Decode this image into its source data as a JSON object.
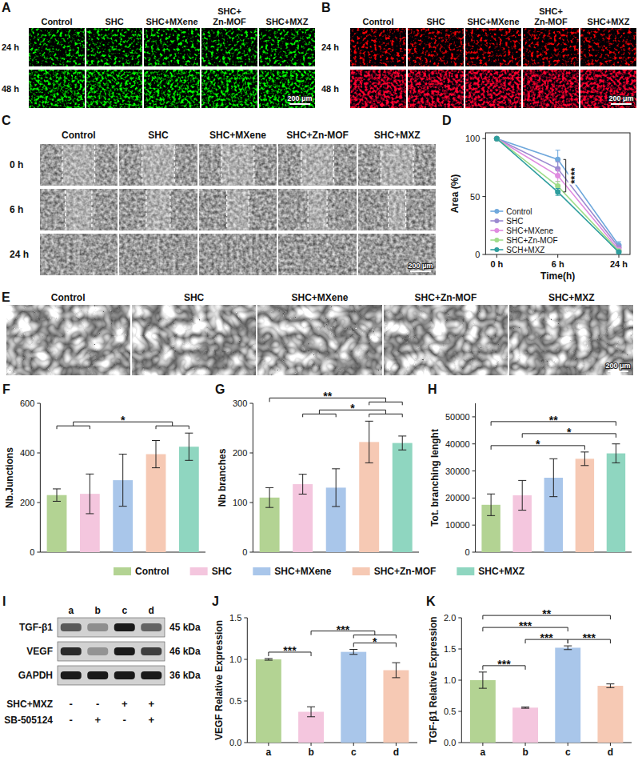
{
  "image_panels": {
    "A": {
      "panel": "A",
      "columns": [
        "Control",
        "SHC",
        "SHC+MXene",
        "SHC+Zn-MOF",
        "SHC+MXZ"
      ],
      "rows": [
        "24 h",
        "48 h"
      ],
      "scale_bar": "200 μm"
    },
    "B": {
      "panel": "B",
      "columns": [
        "Control",
        "SHC",
        "SHC+MXene",
        "SHC+Zn-MOF",
        "SHC+MXZ"
      ],
      "rows": [
        "24 h",
        "48 h"
      ],
      "scale_bar": "200 μm"
    },
    "C": {
      "panel": "C",
      "columns": [
        "Control",
        "SHC",
        "SHC+MXene",
        "SHC+Zn-MOF",
        "SHC+MXZ"
      ],
      "rows": [
        "0 h",
        "6 h",
        "24 h"
      ],
      "scale_bar": "200 μm"
    },
    "E": {
      "panel": "E",
      "columns": [
        "Control",
        "SHC",
        "SHC+MXene",
        "SHC+Zn-MOF",
        "SHC+MXZ"
      ],
      "scale_bar": "200 μm"
    },
    "I": {
      "panel": "I",
      "proteins": [
        "TGF-β1",
        "VEGF",
        "GAPDH"
      ],
      "sizes": [
        "45 kDa",
        "46 kDa",
        "36 kDa"
      ],
      "lanes": [
        "a",
        "b",
        "c",
        "d"
      ],
      "treatments": [
        {
          "name": "SHC+MXZ",
          "signs": [
            "-",
            "-",
            "+",
            "+"
          ]
        },
        {
          "name": "SB-505124",
          "signs": [
            "-",
            "+",
            "-",
            "+"
          ]
        }
      ]
    }
  },
  "chart_data": [
    {
      "panel": "D",
      "type": "line",
      "categories": [
        "0 h",
        "6 h",
        "24 h"
      ],
      "x_label": "Time(h)",
      "y_label": "Area (%)",
      "ylim": [
        0,
        105
      ],
      "yticks": [
        0,
        50,
        100
      ],
      "marker": "circle",
      "legend": "lower left",
      "series": [
        {
          "name": "Control",
          "color": "#6fa8dc",
          "values": [
            100,
            82,
            8
          ],
          "errors": [
            0,
            8,
            3
          ]
        },
        {
          "name": "SHC",
          "color": "#9b8ad0",
          "values": [
            100,
            74,
            6
          ],
          "errors": [
            0,
            6,
            2
          ]
        },
        {
          "name": "SHC+MXene",
          "color": "#e08be0",
          "values": [
            100,
            68,
            4
          ],
          "errors": [
            0,
            5,
            2
          ]
        },
        {
          "name": "SHC+Zn-MOF",
          "color": "#9fdc8a",
          "values": [
            100,
            59,
            3
          ],
          "errors": [
            0,
            4,
            1
          ]
        },
        {
          "name": "SCH+MXZ",
          "color": "#2e9e9e",
          "values": [
            100,
            54,
            2
          ],
          "errors": [
            0,
            3,
            1
          ]
        }
      ],
      "annotations": [
        {
          "text": "****",
          "from": [
            "Control"
          ],
          "to": [
            "SCH+MXZ"
          ],
          "category": "6 h"
        }
      ]
    },
    {
      "panel": "F",
      "type": "bar",
      "categories": [
        "Control",
        "SHC",
        "SHC+MXene",
        "SHC+Zn-MOF",
        "SHC+MXZ"
      ],
      "colors": [
        "#b3d393",
        "#f4c6de",
        "#a9c6ea",
        "#f6c9b4",
        "#8fd6c0"
      ],
      "values": [
        230,
        235,
        290,
        395,
        425
      ],
      "errors": [
        25,
        80,
        105,
        55,
        55
      ],
      "y_label": "Nb.Junctions",
      "ylim": [
        0,
        600
      ],
      "yticks": [
        0,
        200,
        400,
        600
      ],
      "tick_labels": "y",
      "legend": "bottom",
      "annotations": [
        {
          "text": "*",
          "from": [
            "Control",
            "SHC"
          ],
          "to": [
            "SHC+Zn-MOF",
            "SHC+MXZ"
          ]
        }
      ]
    },
    {
      "panel": "G",
      "type": "bar",
      "categories": [
        "Control",
        "SHC",
        "SHC+MXene",
        "SHC+Zn-MOF",
        "SHC+MXZ"
      ],
      "colors": [
        "#b3d393",
        "#f4c6de",
        "#a9c6ea",
        "#f6c9b4",
        "#8fd6c0"
      ],
      "values": [
        110,
        137,
        130,
        222,
        220
      ],
      "errors": [
        20,
        20,
        38,
        42,
        14
      ],
      "y_label": "Nb branches",
      "ylim": [
        0,
        300
      ],
      "yticks": [
        0,
        100,
        200,
        300
      ],
      "tick_labels": "y",
      "annotations": [
        {
          "text": "*",
          "from": [
            "SHC",
            "SHC+MXene"
          ],
          "to": [
            "SHC+Zn-MOF",
            "SHC+MXZ"
          ]
        },
        {
          "text": "**",
          "from": [
            "Control"
          ],
          "to": [
            "SHC+Zn-MOF",
            "SHC+MXZ"
          ]
        }
      ]
    },
    {
      "panel": "H",
      "type": "bar",
      "categories": [
        "Control",
        "SHC",
        "SHC+MXene",
        "SHC+Zn-MOF",
        "SHC+MXZ"
      ],
      "colors": [
        "#b3d393",
        "#f4c6de",
        "#a9c6ea",
        "#f6c9b4",
        "#8fd6c0"
      ],
      "values": [
        17500,
        21000,
        27500,
        34500,
        36500
      ],
      "errors": [
        4000,
        5500,
        7000,
        2500,
        3500
      ],
      "y_label": "Tot. branching lenght",
      "ylim": [
        0,
        55000
      ],
      "yticks": [
        0,
        10000,
        20000,
        30000,
        40000,
        50000
      ],
      "tick_labels": "y",
      "annotations": [
        {
          "text": "*",
          "from": [
            "Control"
          ],
          "to": [
            "SHC+Zn-MOF"
          ]
        },
        {
          "text": "*",
          "from": [
            "SHC"
          ],
          "to": [
            "SHC+MXZ"
          ]
        },
        {
          "text": "**",
          "from": [
            "Control"
          ],
          "to": [
            "SHC+MXZ"
          ]
        }
      ]
    },
    {
      "panel": "J",
      "type": "bar",
      "categories": [
        "a",
        "b",
        "c",
        "d"
      ],
      "colors": [
        "#b3d393",
        "#f4c6de",
        "#a9c6ea",
        "#f6c9b4"
      ],
      "values": [
        1.0,
        0.37,
        1.09,
        0.87
      ],
      "errors": [
        0.01,
        0.06,
        0.03,
        0.09
      ],
      "y_label": "VEGF Relative Expression",
      "ylim": [
        0,
        1.5
      ],
      "yticks": [
        {
          "value": 0,
          "label": "0.0"
        },
        0.5,
        {
          "value": 1,
          "label": "1.0"
        },
        1.5
      ],
      "annotations": [
        {
          "text": "*",
          "from": [
            "c"
          ],
          "to": [
            "d"
          ]
        },
        {
          "text": "***",
          "from": [
            "b"
          ],
          "to": [
            "c",
            "d"
          ]
        },
        {
          "text": "***",
          "from": [
            "a"
          ],
          "to": [
            "b"
          ]
        }
      ]
    },
    {
      "panel": "K",
      "type": "bar",
      "categories": [
        "a",
        "b",
        "c",
        "d"
      ],
      "colors": [
        "#b3d393",
        "#f4c6de",
        "#a9c6ea",
        "#f6c9b4"
      ],
      "values": [
        1.0,
        0.56,
        1.52,
        0.91
      ],
      "errors": [
        0.13,
        0.01,
        0.03,
        0.03
      ],
      "y_label": "TGF-β1 Relative Expression",
      "ylim": [
        0,
        2
      ],
      "yticks": [
        {
          "value": 0,
          "label": "0.0"
        },
        0.5,
        {
          "value": 1,
          "label": "1.0"
        },
        1.5,
        {
          "value": 2,
          "label": "2.0"
        }
      ],
      "annotations": [
        {
          "text": "***",
          "from": [
            "b"
          ],
          "to": [
            "c"
          ]
        },
        {
          "text": "***",
          "from": [
            "c"
          ],
          "to": [
            "d"
          ]
        },
        {
          "text": "***",
          "from": [
            "a"
          ],
          "to": [
            "b"
          ]
        },
        {
          "text": "***",
          "from": [
            "a"
          ],
          "to": [
            "c"
          ]
        },
        {
          "text": "**",
          "from": [
            "a"
          ],
          "to": [
            "d"
          ]
        }
      ]
    }
  ]
}
